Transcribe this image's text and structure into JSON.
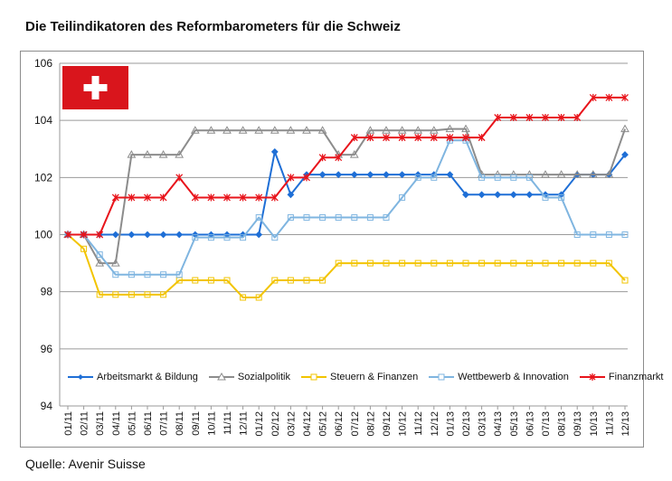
{
  "title": "Die Teilindikatoren des Reformbarometers für die Schweiz",
  "source": "Quelle: Avenir Suisse",
  "flag_icon": "swiss-flag-icon",
  "chart_data": {
    "type": "line",
    "x": [
      "01/11",
      "02/11",
      "03/11",
      "04/11",
      "05/11",
      "06/11",
      "07/11",
      "08/11",
      "09/11",
      "10/11",
      "11/11",
      "12/11",
      "01/12",
      "02/12",
      "03/12",
      "04/12",
      "05/12",
      "06/12",
      "07/12",
      "08/12",
      "09/12",
      "10/12",
      "11/12",
      "12/12",
      "01/13",
      "02/13",
      "03/13",
      "04/13",
      "05/13",
      "06/13",
      "07/13",
      "08/13",
      "09/13",
      "10/13",
      "11/13",
      "12/13"
    ],
    "ylim": [
      94,
      106
    ],
    "yticks": [
      "94",
      "96",
      "98",
      "100",
      "102",
      "104",
      "106"
    ],
    "grid": true,
    "legend_position": "bottom",
    "series": [
      {
        "name": "Arbeitsmarkt & Bildung",
        "color": "#1f6fd6",
        "marker": "diamond",
        "values": [
          100,
          100,
          100,
          100,
          100,
          100,
          100,
          100,
          100,
          100,
          100,
          100,
          100,
          102.9,
          101.4,
          102.1,
          102.1,
          102.1,
          102.1,
          102.1,
          102.1,
          102.1,
          102.1,
          102.1,
          102.1,
          101.4,
          101.4,
          101.4,
          101.4,
          101.4,
          101.4,
          101.4,
          102.1,
          102.1,
          102.1,
          102.8
        ]
      },
      {
        "name": "Sozialpolitik",
        "color": "#8c8c8c",
        "marker": "triangle",
        "values": [
          100,
          100,
          99.0,
          99.0,
          102.8,
          102.8,
          102.8,
          102.8,
          103.65,
          103.65,
          103.65,
          103.65,
          103.65,
          103.65,
          103.65,
          103.65,
          103.65,
          102.8,
          102.8,
          103.65,
          103.65,
          103.65,
          103.65,
          103.65,
          103.7,
          103.7,
          102.1,
          102.1,
          102.1,
          102.1,
          102.1,
          102.1,
          102.1,
          102.1,
          102.1,
          103.7
        ]
      },
      {
        "name": "Steuern & Finanzen",
        "color": "#f2c400",
        "marker": "square",
        "values": [
          100,
          99.5,
          97.9,
          97.9,
          97.9,
          97.9,
          97.9,
          98.4,
          98.4,
          98.4,
          98.4,
          97.8,
          97.8,
          98.4,
          98.4,
          98.4,
          98.4,
          99.0,
          99.0,
          99.0,
          99.0,
          99.0,
          99.0,
          99.0,
          99.0,
          99.0,
          99.0,
          99.0,
          99.0,
          99.0,
          99.0,
          99.0,
          99.0,
          99.0,
          99.0,
          98.4
        ]
      },
      {
        "name": "Wettbewerb & Innovation",
        "color": "#7fb5e0",
        "marker": "square",
        "values": [
          100,
          100,
          99.3,
          98.6,
          98.6,
          98.6,
          98.6,
          98.6,
          99.9,
          99.9,
          99.9,
          99.9,
          100.6,
          99.9,
          100.6,
          100.6,
          100.6,
          100.6,
          100.6,
          100.6,
          100.6,
          101.3,
          102.0,
          102.0,
          103.3,
          103.3,
          102.0,
          102.0,
          102.0,
          102.0,
          101.3,
          101.3,
          100.0,
          100.0,
          100.0,
          100.0
        ]
      },
      {
        "name": "Finanzmarkt",
        "color": "#e8141b",
        "marker": "star",
        "values": [
          100,
          100,
          100,
          101.3,
          101.3,
          101.3,
          101.3,
          102.0,
          101.3,
          101.3,
          101.3,
          101.3,
          101.3,
          101.3,
          102.0,
          102.0,
          102.7,
          102.7,
          103.4,
          103.4,
          103.4,
          103.4,
          103.4,
          103.4,
          103.4,
          103.4,
          103.4,
          104.1,
          104.1,
          104.1,
          104.1,
          104.1,
          104.1,
          104.8,
          104.8,
          104.8
        ]
      }
    ]
  }
}
